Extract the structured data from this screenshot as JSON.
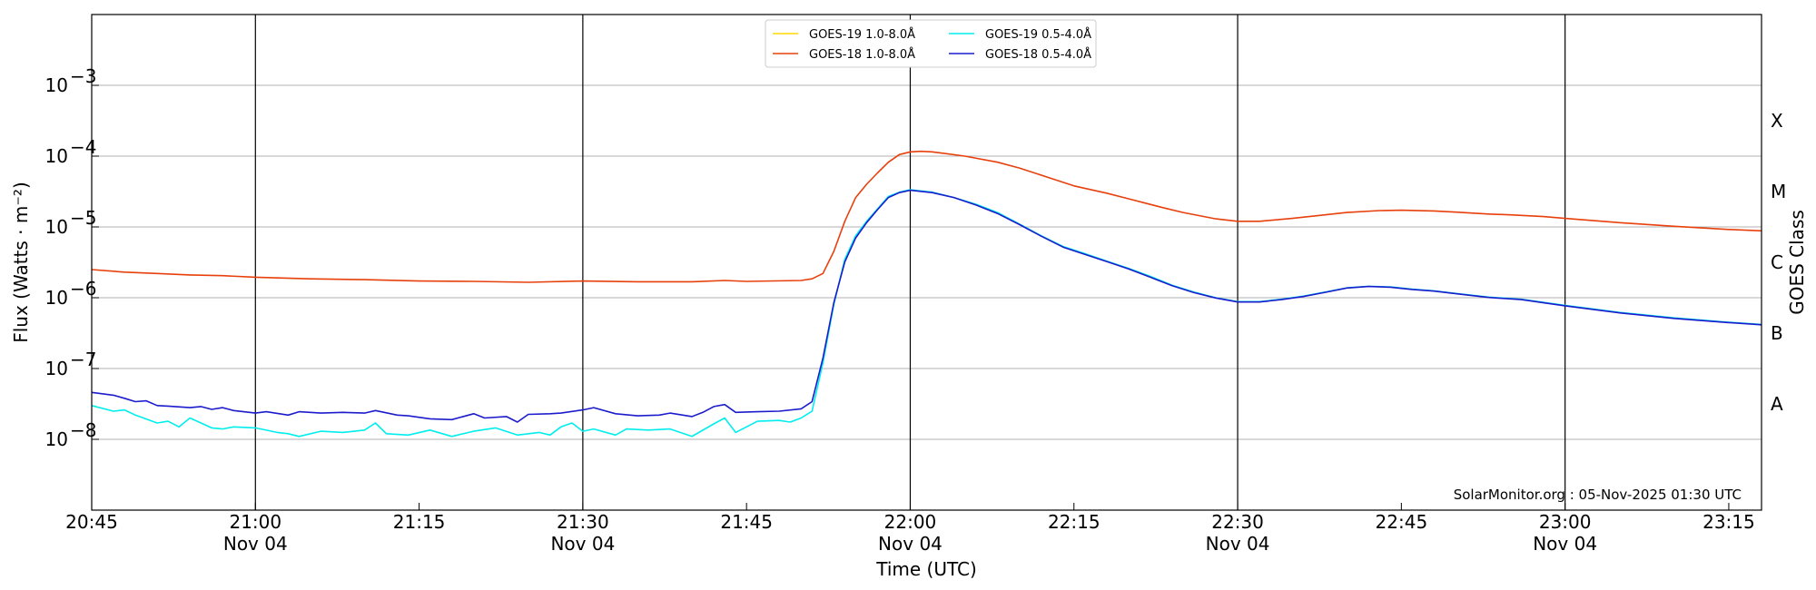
{
  "chart_data": {
    "type": "line",
    "xlabel": "Time (UTC)",
    "ylabel": "Flux (Watts · m⁻²)",
    "right_ylabel": "GOES Class",
    "watermark": "SolarMonitor.org : 05-Nov-2025 01:30 UTC",
    "x_range": [
      "20:45",
      "23:18"
    ],
    "ylim": [
      1e-09,
      0.01
    ],
    "y_scale": "log",
    "grid": "horizontal at each decade",
    "legend_position": "top-center",
    "x_ticks": [
      {
        "t": "20:45",
        "label": "20:45",
        "sub": ""
      },
      {
        "t": "21:00",
        "label": "21:00",
        "sub": "Nov 04"
      },
      {
        "t": "21:15",
        "label": "21:15",
        "sub": ""
      },
      {
        "t": "21:30",
        "label": "21:30",
        "sub": "Nov 04"
      },
      {
        "t": "21:45",
        "label": "21:45",
        "sub": ""
      },
      {
        "t": "22:00",
        "label": "22:00",
        "sub": "Nov 04"
      },
      {
        "t": "22:15",
        "label": "22:15",
        "sub": ""
      },
      {
        "t": "22:30",
        "label": "22:30",
        "sub": "Nov 04"
      },
      {
        "t": "22:45",
        "label": "22:45",
        "sub": ""
      },
      {
        "t": "23:00",
        "label": "23:00",
        "sub": "Nov 04"
      },
      {
        "t": "23:15",
        "label": "23:15",
        "sub": ""
      }
    ],
    "vertical_lines": [
      "21:00",
      "21:30",
      "22:00",
      "22:30",
      "23:00"
    ],
    "y_ticks": [
      {
        "value": 1e-08,
        "base": "10",
        "exp": "−8"
      },
      {
        "value": 1e-07,
        "base": "10",
        "exp": "−7"
      },
      {
        "value": 1e-06,
        "base": "10",
        "exp": "−6"
      },
      {
        "value": 1e-05,
        "base": "10",
        "exp": "−5"
      },
      {
        "value": 0.0001,
        "base": "10",
        "exp": "−4"
      },
      {
        "value": 0.001,
        "base": "10",
        "exp": "−3"
      }
    ],
    "goes_classes": [
      {
        "label": "A",
        "value": 3.16e-08
      },
      {
        "label": "B",
        "value": 3.16e-07
      },
      {
        "label": "C",
        "value": 3.16e-06
      },
      {
        "label": "M",
        "value": 3.16e-05
      },
      {
        "label": "X",
        "value": 0.000316
      }
    ],
    "series": [
      {
        "name": "GOES-19 1.0-8.0Å",
        "color": "#ffd700",
        "points": []
      },
      {
        "name": "GOES-18 1.0-8.0Å",
        "color": "#e8400c",
        "points": [
          [
            "20:45",
            2.5e-06
          ],
          [
            "20:48",
            2.3e-06
          ],
          [
            "20:51",
            2.2e-06
          ],
          [
            "20:54",
            2.1e-06
          ],
          [
            "20:57",
            2.05e-06
          ],
          [
            "21:00",
            1.95e-06
          ],
          [
            "21:05",
            1.85e-06
          ],
          [
            "21:10",
            1.8e-06
          ],
          [
            "21:15",
            1.72e-06
          ],
          [
            "21:20",
            1.7e-06
          ],
          [
            "21:25",
            1.65e-06
          ],
          [
            "21:30",
            1.72e-06
          ],
          [
            "21:35",
            1.68e-06
          ],
          [
            "21:40",
            1.68e-06
          ],
          [
            "21:43",
            1.75e-06
          ],
          [
            "21:45",
            1.7e-06
          ],
          [
            "21:50",
            1.75e-06
          ],
          [
            "21:51",
            1.85e-06
          ],
          [
            "21:52",
            2.2e-06
          ],
          [
            "21:53",
            4.5e-06
          ],
          [
            "21:54",
            1.2e-05
          ],
          [
            "21:55",
            2.6e-05
          ],
          [
            "21:56",
            4e-05
          ],
          [
            "21:57",
            5.8e-05
          ],
          [
            "21:58",
            8.2e-05
          ],
          [
            "21:59",
            0.000105
          ],
          [
            "22:00",
            0.000115
          ],
          [
            "22:01",
            0.000117
          ],
          [
            "22:02",
            0.000115
          ],
          [
            "22:03",
            0.00011
          ],
          [
            "22:05",
            0.0001
          ],
          [
            "22:08",
            8.2e-05
          ],
          [
            "22:10",
            6.8e-05
          ],
          [
            "22:13",
            4.8e-05
          ],
          [
            "22:15",
            3.8e-05
          ],
          [
            "22:18",
            3e-05
          ],
          [
            "22:20",
            2.5e-05
          ],
          [
            "22:23",
            1.9e-05
          ],
          [
            "22:25",
            1.6e-05
          ],
          [
            "22:28",
            1.3e-05
          ],
          [
            "22:30",
            1.2e-05
          ],
          [
            "22:32",
            1.2e-05
          ],
          [
            "22:35",
            1.32e-05
          ],
          [
            "22:38",
            1.48e-05
          ],
          [
            "22:40",
            1.6e-05
          ],
          [
            "22:43",
            1.7e-05
          ],
          [
            "22:45",
            1.72e-05
          ],
          [
            "22:48",
            1.68e-05
          ],
          [
            "22:50",
            1.62e-05
          ],
          [
            "22:53",
            1.52e-05
          ],
          [
            "22:55",
            1.48e-05
          ],
          [
            "22:58",
            1.4e-05
          ],
          [
            "23:00",
            1.32e-05
          ],
          [
            "23:05",
            1.15e-05
          ],
          [
            "23:10",
            1.02e-05
          ],
          [
            "23:15",
            9.2e-06
          ],
          [
            "23:18",
            8.8e-06
          ]
        ]
      },
      {
        "name": "GOES-19 0.5-4.0Å",
        "color": "#00eeee",
        "points": [
          [
            "20:45",
            3e-08
          ],
          [
            "20:47",
            2.5e-08
          ],
          [
            "20:48",
            2.6e-08
          ],
          [
            "20:49",
            2.2e-08
          ],
          [
            "20:51",
            1.7e-08
          ],
          [
            "20:52",
            1.8e-08
          ],
          [
            "20:53",
            1.5e-08
          ],
          [
            "20:54",
            2e-08
          ],
          [
            "20:56",
            1.45e-08
          ],
          [
            "20:57",
            1.4e-08
          ],
          [
            "20:58",
            1.5e-08
          ],
          [
            "21:00",
            1.45e-08
          ],
          [
            "21:02",
            1.25e-08
          ],
          [
            "21:03",
            1.2e-08
          ],
          [
            "21:04",
            1.1e-08
          ],
          [
            "21:06",
            1.3e-08
          ],
          [
            "21:08",
            1.25e-08
          ],
          [
            "21:10",
            1.35e-08
          ],
          [
            "21:11",
            1.7e-08
          ],
          [
            "21:12",
            1.2e-08
          ],
          [
            "21:14",
            1.15e-08
          ],
          [
            "21:16",
            1.35e-08
          ],
          [
            "21:18",
            1.1e-08
          ],
          [
            "21:20",
            1.3e-08
          ],
          [
            "21:22",
            1.45e-08
          ],
          [
            "21:24",
            1.15e-08
          ],
          [
            "21:26",
            1.25e-08
          ],
          [
            "21:27",
            1.15e-08
          ],
          [
            "21:28",
            1.5e-08
          ],
          [
            "21:29",
            1.7e-08
          ],
          [
            "21:30",
            1.3e-08
          ],
          [
            "21:31",
            1.4e-08
          ],
          [
            "21:33",
            1.15e-08
          ],
          [
            "21:34",
            1.4e-08
          ],
          [
            "21:36",
            1.35e-08
          ],
          [
            "21:38",
            1.4e-08
          ],
          [
            "21:40",
            1.1e-08
          ],
          [
            "21:42",
            1.65e-08
          ],
          [
            "21:43",
            2e-08
          ],
          [
            "21:44",
            1.25e-08
          ],
          [
            "21:46",
            1.8e-08
          ],
          [
            "21:48",
            1.85e-08
          ],
          [
            "21:49",
            1.75e-08
          ],
          [
            "21:50",
            2e-08
          ],
          [
            "21:51",
            2.5e-08
          ],
          [
            "21:52",
            1.2e-07
          ],
          [
            "21:53",
            8e-07
          ],
          [
            "21:54",
            3.5e-06
          ],
          [
            "21:55",
            7.5e-06
          ],
          [
            "21:56",
            1.2e-05
          ],
          [
            "21:57",
            1.8e-05
          ],
          [
            "21:58",
            2.7e-05
          ],
          [
            "21:59",
            3.1e-05
          ],
          [
            "22:00",
            3.35e-05
          ],
          [
            "22:02",
            3.1e-05
          ],
          [
            "22:04",
            2.6e-05
          ],
          [
            "22:06",
            2.1e-05
          ],
          [
            "22:08",
            1.6e-05
          ],
          [
            "22:10",
            1.1e-05
          ],
          [
            "22:12",
            7.5e-06
          ],
          [
            "22:14",
            5.3e-06
          ],
          [
            "22:16",
            4.2e-06
          ],
          [
            "22:18",
            3.3e-06
          ],
          [
            "22:20",
            2.6e-06
          ],
          [
            "22:22",
            2e-06
          ],
          [
            "22:24",
            1.5e-06
          ],
          [
            "22:26",
            1.2e-06
          ],
          [
            "22:28",
            1e-06
          ],
          [
            "22:30",
            8.8e-07
          ],
          [
            "22:32",
            8.8e-07
          ],
          [
            "22:34",
            9.5e-07
          ],
          [
            "22:36",
            1.05e-06
          ],
          [
            "22:38",
            1.2e-06
          ],
          [
            "22:40",
            1.38e-06
          ],
          [
            "22:42",
            1.45e-06
          ],
          [
            "22:44",
            1.42e-06
          ],
          [
            "22:46",
            1.32e-06
          ],
          [
            "22:48",
            1.25e-06
          ],
          [
            "22:50",
            1.15e-06
          ],
          [
            "22:53",
            1.02e-06
          ],
          [
            "22:56",
            9.5e-07
          ],
          [
            "23:00",
            7.8e-07
          ],
          [
            "23:05",
            6.2e-07
          ],
          [
            "23:10",
            5.2e-07
          ],
          [
            "23:15",
            4.5e-07
          ],
          [
            "23:18",
            4.2e-07
          ]
        ]
      },
      {
        "name": "GOES-18 0.5-4.0Å",
        "color": "#1c1ccc",
        "points": [
          [
            "20:45",
            4.6e-08
          ],
          [
            "20:47",
            4.2e-08
          ],
          [
            "20:48",
            3.8e-08
          ],
          [
            "20:49",
            3.4e-08
          ],
          [
            "20:50",
            3.5e-08
          ],
          [
            "20:51",
            3e-08
          ],
          [
            "20:52",
            2.95e-08
          ],
          [
            "20:54",
            2.8e-08
          ],
          [
            "20:55",
            2.9e-08
          ],
          [
            "20:56",
            2.65e-08
          ],
          [
            "20:57",
            2.8e-08
          ],
          [
            "20:58",
            2.55e-08
          ],
          [
            "21:00",
            2.35e-08
          ],
          [
            "21:01",
            2.45e-08
          ],
          [
            "21:03",
            2.2e-08
          ],
          [
            "21:04",
            2.45e-08
          ],
          [
            "21:06",
            2.35e-08
          ],
          [
            "21:08",
            2.4e-08
          ],
          [
            "21:10",
            2.35e-08
          ],
          [
            "21:11",
            2.55e-08
          ],
          [
            "21:13",
            2.2e-08
          ],
          [
            "21:14",
            2.15e-08
          ],
          [
            "21:16",
            1.95e-08
          ],
          [
            "21:18",
            1.9e-08
          ],
          [
            "21:20",
            2.3e-08
          ],
          [
            "21:21",
            2e-08
          ],
          [
            "21:23",
            2.1e-08
          ],
          [
            "21:24",
            1.75e-08
          ],
          [
            "21:25",
            2.25e-08
          ],
          [
            "21:27",
            2.3e-08
          ],
          [
            "21:28",
            2.35e-08
          ],
          [
            "21:30",
            2.6e-08
          ],
          [
            "21:31",
            2.8e-08
          ],
          [
            "21:33",
            2.3e-08
          ],
          [
            "21:35",
            2.15e-08
          ],
          [
            "21:37",
            2.2e-08
          ],
          [
            "21:38",
            2.35e-08
          ],
          [
            "21:40",
            2.1e-08
          ],
          [
            "21:41",
            2.4e-08
          ],
          [
            "21:42",
            2.9e-08
          ],
          [
            "21:43",
            3.1e-08
          ],
          [
            "21:44",
            2.4e-08
          ],
          [
            "21:46",
            2.45e-08
          ],
          [
            "21:48",
            2.5e-08
          ],
          [
            "21:50",
            2.7e-08
          ],
          [
            "21:51",
            3.4e-08
          ],
          [
            "21:52",
            1.4e-07
          ],
          [
            "21:53",
            8.5e-07
          ],
          [
            "21:54",
            3.2e-06
          ],
          [
            "21:55",
            7e-06
          ],
          [
            "21:56",
            1.15e-05
          ],
          [
            "21:57",
            1.75e-05
          ],
          [
            "21:58",
            2.6e-05
          ],
          [
            "21:59",
            3.05e-05
          ],
          [
            "22:00",
            3.3e-05
          ],
          [
            "22:02",
            3.05e-05
          ],
          [
            "22:04",
            2.6e-05
          ],
          [
            "22:06",
            2.05e-05
          ],
          [
            "22:08",
            1.55e-05
          ],
          [
            "22:10",
            1.08e-05
          ],
          [
            "22:12",
            7.4e-06
          ],
          [
            "22:14",
            5.2e-06
          ],
          [
            "22:16",
            4.1e-06
          ],
          [
            "22:18",
            3.25e-06
          ],
          [
            "22:20",
            2.55e-06
          ],
          [
            "22:22",
            1.95e-06
          ],
          [
            "22:24",
            1.48e-06
          ],
          [
            "22:26",
            1.18e-06
          ],
          [
            "22:28",
            9.9e-07
          ],
          [
            "22:30",
            8.7e-07
          ],
          [
            "22:32",
            8.7e-07
          ],
          [
            "22:34",
            9.4e-07
          ],
          [
            "22:36",
            1.04e-06
          ],
          [
            "22:38",
            1.19e-06
          ],
          [
            "22:40",
            1.37e-06
          ],
          [
            "22:42",
            1.44e-06
          ],
          [
            "22:44",
            1.41e-06
          ],
          [
            "22:46",
            1.31e-06
          ],
          [
            "22:48",
            1.24e-06
          ],
          [
            "22:50",
            1.14e-06
          ],
          [
            "22:53",
            1.01e-06
          ],
          [
            "22:56",
            9.4e-07
          ],
          [
            "23:00",
            7.7e-07
          ],
          [
            "23:05",
            6.1e-07
          ],
          [
            "23:10",
            5.1e-07
          ],
          [
            "23:15",
            4.45e-07
          ],
          [
            "23:18",
            4.15e-07
          ]
        ]
      }
    ]
  }
}
